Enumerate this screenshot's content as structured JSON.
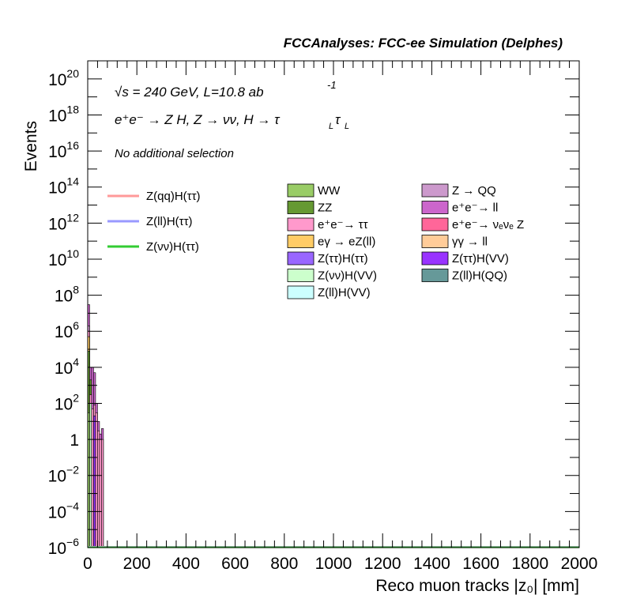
{
  "header": {
    "title": "FCCAnalyses: FCC-ee Simulation (Delphes)"
  },
  "annotations": {
    "energy_lumi": "√s = 240 GeV, L=10.8 ab",
    "energy_lumi_sup": "-1",
    "process_main": "e⁺e⁻ → Z H, Z → νν, H → τ",
    "process_sub1": "L",
    "process_tau2": "τ",
    "process_sub2": "L",
    "selection": "No additional selection"
  },
  "chart_data": {
    "type": "bar",
    "title": "FCCAnalyses: FCC-ee Simulation (Delphes)",
    "xlabel": "Reco muon tracks |z₀| [mm]",
    "ylabel": "Events",
    "xlim": [
      0,
      2000
    ],
    "ylim": [
      1e-06,
      1e+21
    ],
    "yscale": "log",
    "grid": false,
    "legend_position": "top-right",
    "x_ticks": [
      "0",
      "200",
      "400",
      "600",
      "800",
      "1000",
      "1200",
      "1400",
      "1600",
      "1800",
      "2000"
    ],
    "y_ticks": [
      {
        "base": "10",
        "exp": "−6",
        "value": 1e-06
      },
      {
        "base": "10",
        "exp": "−4",
        "value": 0.0001
      },
      {
        "base": "10",
        "exp": "−2",
        "value": 0.01
      },
      {
        "base": "1",
        "exp": "",
        "value": 1
      },
      {
        "base": "10",
        "exp": "2",
        "value": 100.0
      },
      {
        "base": "10",
        "exp": "4",
        "value": 10000.0
      },
      {
        "base": "10",
        "exp": "6",
        "value": 1000000.0
      },
      {
        "base": "10",
        "exp": "8",
        "value": 100000000.0
      },
      {
        "base": "10",
        "exp": "10",
        "value": 10000000000.0
      },
      {
        "base": "10",
        "exp": "12",
        "value": 1000000000000.0
      },
      {
        "base": "10",
        "exp": "14",
        "value": 100000000000000.0
      },
      {
        "base": "10",
        "exp": "16",
        "value": 1e+16
      },
      {
        "base": "10",
        "exp": "18",
        "value": 1e+18
      },
      {
        "base": "10",
        "exp": "20",
        "value": 1e+20
      }
    ],
    "bins": [
      {
        "x0": 0,
        "x1": 8,
        "stack": [
          {
            "series": "WW",
            "top": 30.0
          },
          {
            "series": "ZZ",
            "top": 80000.0
          },
          {
            "series": "eγ → eZ(ll)",
            "top": 500000.0
          },
          {
            "series": "e⁺e⁻ → ττ",
            "top": 1000000.0
          },
          {
            "series": "Z → QQ",
            "top": 2000000.0
          },
          {
            "series": "e⁺e⁻ → ll",
            "top": 30000000.0
          }
        ]
      },
      {
        "x0": 8,
        "x1": 16,
        "stack": [
          {
            "series": "Z(νν)H(VV)",
            "top": 100.0
          },
          {
            "series": "e⁺e⁻ → ττ",
            "top": 300.0
          },
          {
            "series": "ZZ",
            "top": 2000.0
          },
          {
            "series": "e⁺e⁻ → ll",
            "top": 10000.0
          }
        ]
      },
      {
        "x0": 16,
        "x1": 24,
        "stack": [
          {
            "series": "e⁺e⁻ → ττ",
            "top": 50.0
          },
          {
            "series": "e⁺e⁻ → ll",
            "top": 10000.0
          }
        ]
      },
      {
        "x0": 24,
        "x1": 32,
        "stack": [
          {
            "series": "Z(ττ)H(VV)",
            "top": 20.0
          },
          {
            "series": "e⁺e⁻ → ττ",
            "top": 80.0
          },
          {
            "series": "e⁺e⁻ → ll",
            "top": 5000.0
          }
        ]
      },
      {
        "x0": 32,
        "x1": 40,
        "stack": [
          {
            "series": "e⁺e⁻ → ττ",
            "top": 30.0
          },
          {
            "series": "e⁺e⁻ → ll",
            "top": 100.0
          }
        ]
      },
      {
        "x0": 40,
        "x1": 48,
        "stack": [
          {
            "series": "e⁺e⁻ → ττ",
            "top": 3
          },
          {
            "series": "e⁺e⁻ → ll",
            "top": 10.0
          }
        ]
      },
      {
        "x0": 48,
        "x1": 56,
        "stack": [
          {
            "series": "e⁺e⁻ → ττ",
            "top": 1
          },
          {
            "series": "e⁺e⁻ → ll",
            "top": 2
          }
        ]
      },
      {
        "x0": 56,
        "x1": 64,
        "stack": [
          {
            "series": "e⁺e⁻ → ττ",
            "top": 1
          },
          {
            "series": "e⁺e⁻ → ll",
            "top": 4
          }
        ]
      }
    ],
    "signal_lines": [
      {
        "name": "Z(qq)H(ττ)",
        "color": "#ff9999",
        "value": 1e-06
      },
      {
        "name": "Z(ll)H(ττ)",
        "color": "#9999ff",
        "value": 1e-06
      },
      {
        "name": "Z(νν)H(ττ)",
        "color": "#33cc33",
        "value": 1e-06
      }
    ],
    "legend_signals": [
      {
        "name": "Z(qq)H(ττ)",
        "color": "#ff9999"
      },
      {
        "name": "Z(ll)H(ττ)",
        "color": "#9999ff"
      },
      {
        "name": "Z(νν)H(ττ)",
        "color": "#33cc33"
      }
    ],
    "legend_backgrounds": [
      {
        "name": "WW",
        "color": "#99cc66"
      },
      {
        "name": "ZZ",
        "color": "#669933"
      },
      {
        "name": "e⁺e⁻→ ττ",
        "color": "#ff99cc"
      },
      {
        "name": "eγ → eZ(ll)",
        "color": "#ffcc66"
      },
      {
        "name": "Z(ττ)H(ττ)",
        "color": "#9966ff"
      },
      {
        "name": "Z(νν)H(VV)",
        "color": "#ccffcc"
      },
      {
        "name": "Z(ll)H(VV)",
        "color": "#ccffff"
      },
      {
        "name": "Z → QQ",
        "color": "#cc99cc"
      },
      {
        "name": "e⁺e⁻→ ll",
        "color": "#cc66cc"
      },
      {
        "name": "e⁺e⁻→ νₑνₑ Z",
        "color": "#ff6699"
      },
      {
        "name": "γγ → ll",
        "color": "#ffcc99"
      },
      {
        "name": "Z(ττ)H(VV)",
        "color": "#9933ff"
      },
      {
        "name": "Z(ll)H(QQ)",
        "color": "#669999"
      }
    ]
  },
  "colors": {
    "frame": "#000000",
    "background": "#ffffff"
  }
}
